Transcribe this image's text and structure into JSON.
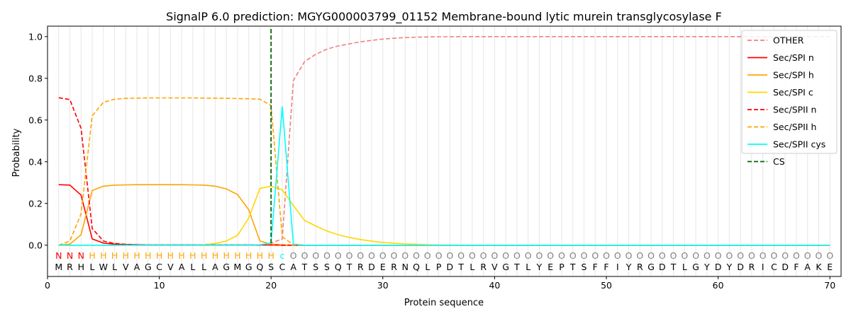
{
  "chart_data": {
    "type": "line",
    "title": "SignalP 6.0 prediction: MGYG000003799_01152 Membrane-bound lytic murein transglycosylase F",
    "xlabel": "Protein sequence",
    "ylabel": "Probability",
    "xlim": [
      0,
      71
    ],
    "ylim": [
      -0.15,
      1.05
    ],
    "x_ticks": [
      0,
      10,
      20,
      30,
      40,
      50,
      60,
      70
    ],
    "y_ticks": [
      0.0,
      0.2,
      0.4,
      0.6,
      0.8,
      1.0
    ],
    "x_tick_labels": [
      "0",
      "10",
      "20",
      "30",
      "40",
      "50",
      "60",
      "70"
    ],
    "y_tick_labels": [
      "0.0",
      "0.2",
      "0.4",
      "0.6",
      "0.8",
      "1.0"
    ],
    "grid": "vertical lines at each residue position",
    "legend_position": "top-right",
    "sequence": "MRHLWLVAGCVALLAGMGQSCATSSQTRDERNQLPDTLRVGTLYEPTSFFIYRGDTLGYDYDRICDFAKE",
    "region_labels": "NNNHHHHHHHHHHHHHHHHHcOOOOOOOOOOOOOOOOOOOOOOOOOOOOOOOOOOOOOOOOOOOOOOOOOO",
    "region_colors": {
      "N": "#ff0000",
      "H": "#ffa500",
      "c": "#00ffff",
      "O": "#808080"
    },
    "cleavage_site": 20,
    "series": [
      {
        "name": "OTHER",
        "color": "#f08080",
        "dash": "dashed",
        "values": [
          0.0,
          0.0,
          0.0,
          0.0,
          0.0,
          0.0,
          0.0,
          0.0,
          0.0,
          0.0,
          0.0,
          0.0,
          0.0,
          0.0,
          0.0,
          0.0,
          0.0,
          0.0,
          0.0,
          0.01,
          0.03,
          0.79,
          0.88,
          0.915,
          0.94,
          0.955,
          0.965,
          0.975,
          0.982,
          0.988,
          0.992,
          0.995,
          0.997,
          0.998,
          0.999,
          0.999,
          1.0,
          1.0,
          1.0,
          1.0,
          1.0,
          1.0,
          1.0,
          1.0,
          1.0,
          1.0,
          1.0,
          1.0,
          1.0,
          1.0,
          1.0,
          1.0,
          1.0,
          1.0,
          1.0,
          1.0,
          1.0,
          1.0,
          1.0,
          1.0,
          1.0,
          1.0,
          1.0,
          1.0,
          1.0,
          1.0,
          1.0,
          1.0,
          1.0,
          1.0
        ]
      },
      {
        "name": "Sec/SPI n",
        "color": "#ff0000",
        "dash": "solid",
        "values": [
          0.29,
          0.288,
          0.24,
          0.03,
          0.01,
          0.005,
          0.003,
          0.002,
          0.001,
          0.001,
          0.001,
          0.001,
          0.001,
          0.001,
          0.001,
          0.001,
          0.001,
          0.001,
          0.001,
          0.001,
          0.0,
          0.0,
          0.0,
          0.0,
          0.0,
          0.0,
          0.0,
          0.0,
          0.0,
          0.0,
          0.0,
          0.0,
          0.0,
          0.0,
          0.0,
          0.0,
          0.0,
          0.0,
          0.0,
          0.0,
          0.0,
          0.0,
          0.0,
          0.0,
          0.0,
          0.0,
          0.0,
          0.0,
          0.0,
          0.0,
          0.0,
          0.0,
          0.0,
          0.0,
          0.0,
          0.0,
          0.0,
          0.0,
          0.0,
          0.0,
          0.0,
          0.0,
          0.0,
          0.0,
          0.0,
          0.0,
          0.0,
          0.0,
          0.0,
          0.0
        ]
      },
      {
        "name": "Sec/SPI h",
        "color": "#ffa500",
        "dash": "solid",
        "values": [
          0.0,
          0.005,
          0.05,
          0.262,
          0.283,
          0.288,
          0.289,
          0.29,
          0.29,
          0.29,
          0.29,
          0.29,
          0.289,
          0.288,
          0.283,
          0.27,
          0.243,
          0.17,
          0.02,
          0.005,
          0.002,
          0.0,
          0.0,
          0.0,
          0.0,
          0.0,
          0.0,
          0.0,
          0.0,
          0.0,
          0.0,
          0.0,
          0.0,
          0.0,
          0.0,
          0.0,
          0.0,
          0.0,
          0.0,
          0.0,
          0.0,
          0.0,
          0.0,
          0.0,
          0.0,
          0.0,
          0.0,
          0.0,
          0.0,
          0.0,
          0.0,
          0.0,
          0.0,
          0.0,
          0.0,
          0.0,
          0.0,
          0.0,
          0.0,
          0.0,
          0.0,
          0.0,
          0.0,
          0.0,
          0.0,
          0.0,
          0.0,
          0.0,
          0.0,
          0.0
        ]
      },
      {
        "name": "Sec/SPI c",
        "color": "#ffd700",
        "dash": "solid",
        "values": [
          0.0,
          0.0,
          0.0,
          0.0,
          0.0,
          0.0,
          0.0,
          0.0,
          0.0,
          0.0,
          0.0,
          0.0,
          0.0,
          0.002,
          0.008,
          0.02,
          0.047,
          0.13,
          0.272,
          0.283,
          0.265,
          0.19,
          0.118,
          0.092,
          0.068,
          0.05,
          0.037,
          0.027,
          0.019,
          0.013,
          0.009,
          0.006,
          0.004,
          0.002,
          0.001,
          0.001,
          0.0,
          0.0,
          0.0,
          0.0,
          0.0,
          0.0,
          0.0,
          0.0,
          0.0,
          0.0,
          0.0,
          0.0,
          0.0,
          0.0,
          0.0,
          0.0,
          0.0,
          0.0,
          0.0,
          0.0,
          0.0,
          0.0,
          0.0,
          0.0,
          0.0,
          0.0,
          0.0,
          0.0,
          0.0,
          0.0,
          0.0,
          0.0,
          0.0,
          0.0
        ]
      },
      {
        "name": "Sec/SPII n",
        "color": "#ff0000",
        "dash": "dashed",
        "values": [
          0.707,
          0.698,
          0.56,
          0.08,
          0.02,
          0.008,
          0.004,
          0.002,
          0.001,
          0.001,
          0.001,
          0.001,
          0.001,
          0.001,
          0.001,
          0.001,
          0.001,
          0.001,
          0.001,
          0.001,
          0.0,
          0.0,
          0.0,
          0.0,
          0.0,
          0.0,
          0.0,
          0.0,
          0.0,
          0.0,
          0.0,
          0.0,
          0.0,
          0.0,
          0.0,
          0.0,
          0.0,
          0.0,
          0.0,
          0.0,
          0.0,
          0.0,
          0.0,
          0.0,
          0.0,
          0.0,
          0.0,
          0.0,
          0.0,
          0.0,
          0.0,
          0.0,
          0.0,
          0.0,
          0.0,
          0.0,
          0.0,
          0.0,
          0.0,
          0.0,
          0.0,
          0.0,
          0.0,
          0.0,
          0.0,
          0.0,
          0.0,
          0.0,
          0.0,
          0.0
        ]
      },
      {
        "name": "Sec/SPII h",
        "color": "#ffa500",
        "dash": "dashed",
        "values": [
          0.0,
          0.02,
          0.15,
          0.62,
          0.685,
          0.7,
          0.704,
          0.705,
          0.706,
          0.706,
          0.706,
          0.706,
          0.706,
          0.705,
          0.705,
          0.704,
          0.703,
          0.702,
          0.7,
          0.67,
          0.04,
          0.002,
          0.0,
          0.0,
          0.0,
          0.0,
          0.0,
          0.0,
          0.0,
          0.0,
          0.0,
          0.0,
          0.0,
          0.0,
          0.0,
          0.0,
          0.0,
          0.0,
          0.0,
          0.0,
          0.0,
          0.0,
          0.0,
          0.0,
          0.0,
          0.0,
          0.0,
          0.0,
          0.0,
          0.0,
          0.0,
          0.0,
          0.0,
          0.0,
          0.0,
          0.0,
          0.0,
          0.0,
          0.0,
          0.0,
          0.0,
          0.0,
          0.0,
          0.0,
          0.0,
          0.0,
          0.0,
          0.0,
          0.0,
          0.0
        ]
      },
      {
        "name": "Sec/SPII cys",
        "color": "#00ffff",
        "dash": "solid",
        "values": [
          0.0,
          0.0,
          0.0,
          0.0,
          0.0,
          0.0,
          0.0,
          0.0,
          0.0,
          0.0,
          0.0,
          0.0,
          0.0,
          0.0,
          0.0,
          0.0,
          0.0,
          0.0,
          0.002,
          0.01,
          0.665,
          0.005,
          0.0,
          0.0,
          0.0,
          0.0,
          0.0,
          0.0,
          0.0,
          0.0,
          0.0,
          0.0,
          0.0,
          0.0,
          0.0,
          0.0,
          0.0,
          0.0,
          0.0,
          0.0,
          0.0,
          0.0,
          0.0,
          0.0,
          0.0,
          0.0,
          0.0,
          0.0,
          0.0,
          0.0,
          0.0,
          0.0,
          0.0,
          0.0,
          0.0,
          0.0,
          0.0,
          0.0,
          0.0,
          0.0,
          0.0,
          0.0,
          0.0,
          0.0,
          0.0,
          0.0,
          0.0,
          0.0,
          0.0,
          0.0
        ]
      },
      {
        "name": "CS",
        "color": "#006400",
        "dash": "dashed",
        "values": []
      }
    ]
  }
}
